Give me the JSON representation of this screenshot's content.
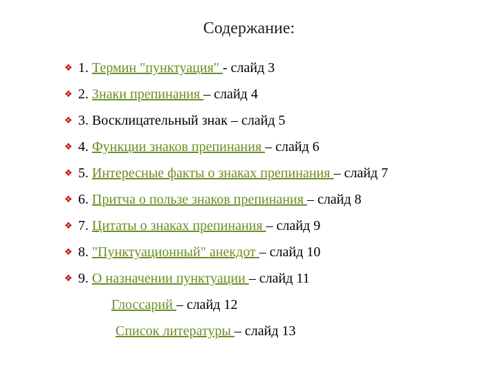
{
  "title": "Содержание:",
  "bullet_glyph": "❖",
  "colors": {
    "bullet": "#c00000",
    "link": "#6b8e23",
    "text": "#000000",
    "background": "#ffffff",
    "title": "#222222"
  },
  "typography": {
    "title_fontsize_pt": 18,
    "body_fontsize_pt": 15,
    "font_family": "Times New Roman"
  },
  "items": [
    {
      "num": "1. ",
      "link": "Термин \"пунктуация\" ",
      "suffix": "- слайд 3",
      "has_bullet": true,
      "has_link": true,
      "indent": 0
    },
    {
      "num": "2. ",
      "link": "Знаки препинания ",
      "suffix": "– слайд 4",
      "has_bullet": true,
      "has_link": true,
      "indent": 0
    },
    {
      "num": "3. Восклицательный знак – слайд 5",
      "link": "",
      "suffix": "",
      "has_bullet": true,
      "has_link": false,
      "indent": 0
    },
    {
      "num": "4. ",
      "link": "Функции знаков препинания ",
      "suffix": "– слайд 6",
      "has_bullet": true,
      "has_link": true,
      "indent": 0
    },
    {
      "num": "5. ",
      "link": "Интересные факты о знаках препинания ",
      "suffix": "– слайд 7",
      "has_bullet": true,
      "has_link": true,
      "indent": 0
    },
    {
      "num": "6. ",
      "link": "Притча о пользе знаков препинания ",
      "suffix": "– слайд 8",
      "has_bullet": true,
      "has_link": true,
      "indent": 0
    },
    {
      "num": "7. ",
      "link": "Цитаты о знаках препинания ",
      "suffix": "– слайд 9",
      "has_bullet": true,
      "has_link": true,
      "indent": 0
    },
    {
      "num": "8. ",
      "link": "\"Пунктуационный\" анекдот ",
      "suffix": "– слайд 10",
      "has_bullet": true,
      "has_link": true,
      "indent": 0
    },
    {
      "num": "9. ",
      "link": "О назначении пунктуации ",
      "suffix": "– слайд 11",
      "has_bullet": true,
      "has_link": true,
      "indent": 0
    },
    {
      "num": "",
      "link": "Глоссарий ",
      "suffix": "– слайд 12",
      "has_bullet": false,
      "has_link": true,
      "indent": 1
    },
    {
      "num": "",
      "link": "Список литературы ",
      "suffix": "– слайд 13",
      "has_bullet": false,
      "has_link": true,
      "indent": 2
    }
  ]
}
